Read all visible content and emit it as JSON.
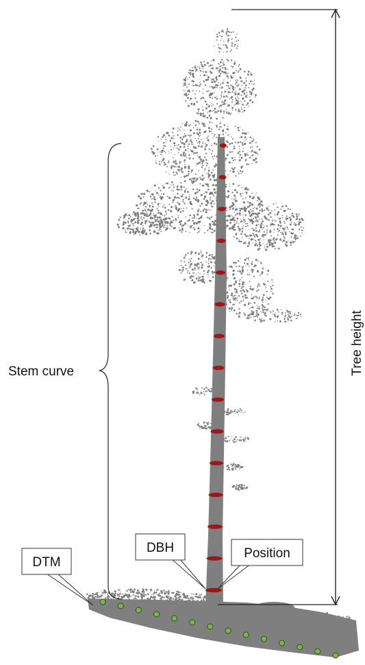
{
  "labels": {
    "stem_curve": "Stem curve",
    "tree_height": "Tree height",
    "dtm": "DTM",
    "dbh": "DBH",
    "position": "Position"
  },
  "colors": {
    "point_cloud": "#7f7f7f",
    "stem_circle": "#a31515",
    "dtm_point": "#7ab648",
    "dtm_point_outline": "#2f4f1f",
    "line": "#222222"
  },
  "stem_circle_count": 15,
  "dtm_point_count": 14
}
